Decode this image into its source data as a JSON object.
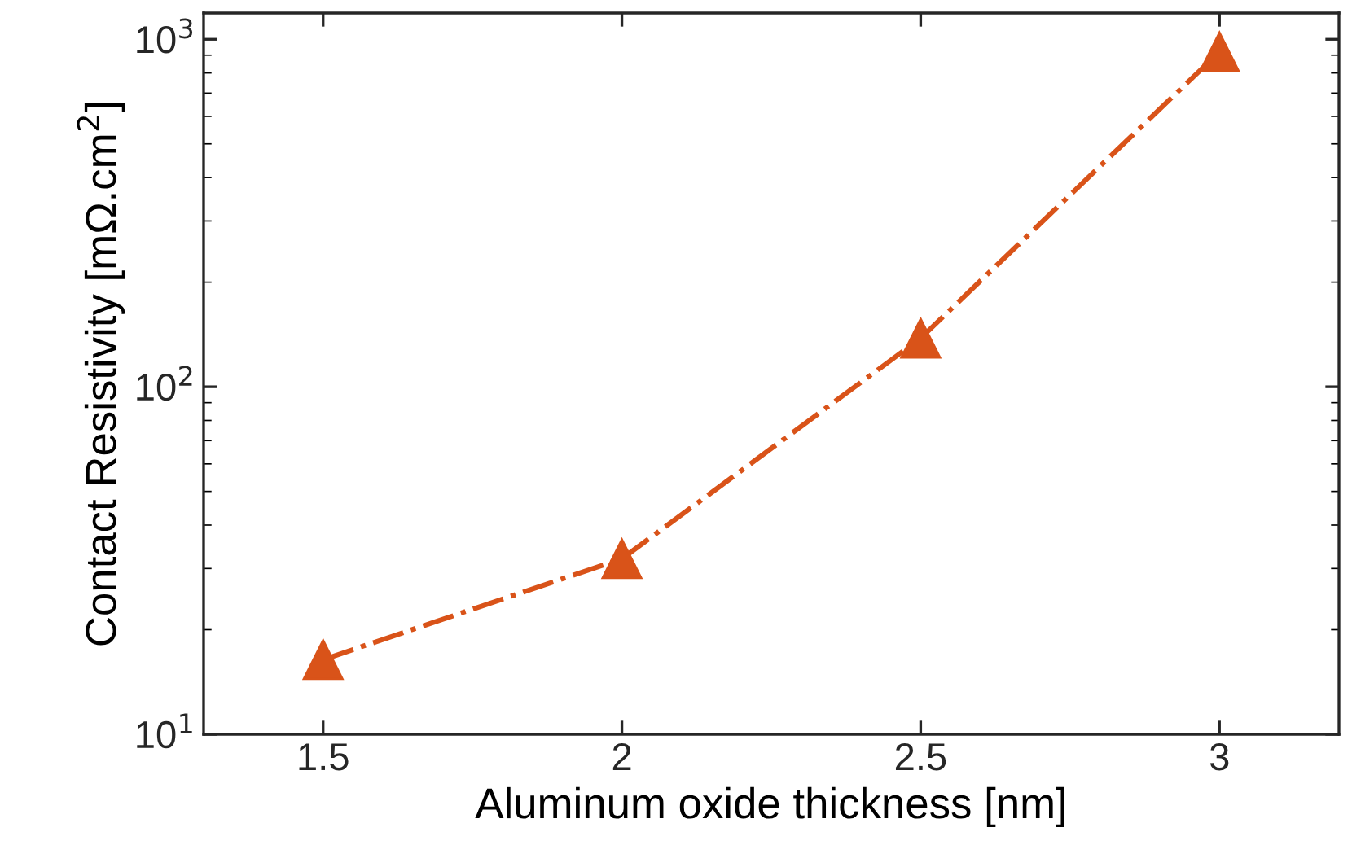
{
  "chart_data": {
    "type": "line",
    "xlabel": "Aluminum oxide thickness [nm]",
    "ylabel": "Contact Resistivity [mΩ.cm$^{2}$]",
    "x": [
      1.5,
      2,
      2.5,
      3
    ],
    "series": [
      {
        "color": "#d95319",
        "values": [
          16.4,
          32,
          138,
          920
        ]
      }
    ],
    "xlim": [
      1.3,
      3.2
    ],
    "xticks": [
      1.5,
      2,
      2.5,
      3
    ],
    "log": "y",
    "ylim": [
      10,
      1190
    ],
    "yticks": [
      {
        "value": 10,
        "label": "10$^{1}$"
      },
      {
        "value": 100,
        "label": "10$^{2}$"
      },
      {
        "value": 1000,
        "label": "10$^{3}$"
      }
    ],
    "grid": false,
    "legend": false,
    "marker": "triangle",
    "line_style": "dashdot"
  }
}
